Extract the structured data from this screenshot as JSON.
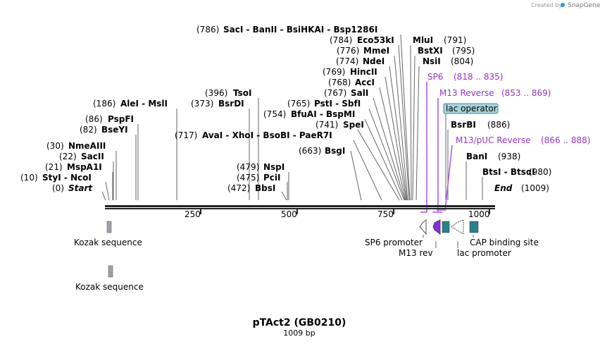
{
  "brand": {
    "created_by": "Created by",
    "name": "SnapGene",
    "accent": "#1fa0d8"
  },
  "title": "pTAct2 (GB0210)",
  "subtitle": "1009 bp",
  "ticks": [
    "250",
    "500",
    "750",
    "1000"
  ],
  "sites": [
    {
      "pos": "(786)",
      "name": "SacI  - BanII  - BsiHKAI  - Bsp1286I"
    },
    {
      "pos": "(784)",
      "name": "Eco53kI"
    },
    {
      "pos": "(776)",
      "name": "MmeI"
    },
    {
      "pos": "(774)",
      "name": "NdeI"
    },
    {
      "pos": "(769)",
      "name": "HincII"
    },
    {
      "pos": "(768)",
      "name": "AccI"
    },
    {
      "pos": "(767)",
      "name": "SalI"
    },
    {
      "pos": "(765)",
      "name": "PstI  - SbfI"
    },
    {
      "pos": "(754)",
      "name": "BfuAI  - BspMI"
    },
    {
      "pos": "(741)",
      "name": "SpeI"
    },
    {
      "pos": "(717)",
      "name": "AvaI  - XhoI  - BsoBI  - PaeR7I"
    },
    {
      "pos": "(663)",
      "name": "BsgI"
    },
    {
      "pos": "(396)",
      "name": "TsoI"
    },
    {
      "pos": "(373)",
      "name": "BsrDI"
    },
    {
      "pos": "(186)",
      "name": "AleI  - MslI"
    },
    {
      "pos": "(86)",
      "name": "PspFI"
    },
    {
      "pos": "(82)",
      "name": "BseYI"
    },
    {
      "pos": "(30)",
      "name": "NmeAIII"
    },
    {
      "pos": "(22)",
      "name": "SacII"
    },
    {
      "pos": "(21)",
      "name": "MspA1I"
    },
    {
      "pos": "(10)",
      "name": "StyI  - NcoI"
    },
    {
      "pos": "(0)",
      "name": "Start"
    },
    {
      "pos": "(479)",
      "name": "NspI"
    },
    {
      "pos": "(475)",
      "name": "PciI"
    },
    {
      "pos": "(472)",
      "name": "BbsI"
    },
    {
      "pos": "(791)",
      "name": "MluI"
    },
    {
      "pos": "(795)",
      "name": "BstXI"
    },
    {
      "pos": "(804)",
      "name": "NsiI"
    },
    {
      "pos": "(886)",
      "name": "BsrBI"
    },
    {
      "pos": "(938)",
      "name": "BanI"
    },
    {
      "pos": "(980)",
      "name": "BtsI  - BtsαI"
    },
    {
      "pos": "(1009)",
      "name": "End"
    }
  ],
  "primers": [
    {
      "name": "SP6",
      "range": "(818 .. 835)"
    },
    {
      "name": "M13 Reverse",
      "range": "(853 .. 869)"
    },
    {
      "name": "M13/pUC Reverse",
      "range": "(866 .. 888)"
    }
  ],
  "lac_operator": "lac operator",
  "features": [
    {
      "name": "Kozak sequence"
    },
    {
      "name": "Kozak sequence"
    },
    {
      "name": "SP6 promoter"
    },
    {
      "name": "M13 rev"
    },
    {
      "name": "lac promoter"
    },
    {
      "name": "CAP binding site"
    }
  ],
  "colors": {
    "backbone": "#222222",
    "primer": "#9933cc",
    "kozak": "#a0a0a8",
    "cap": "#2a7f8f",
    "operator": "#a8d4dc",
    "m13rev": "#8a2be2"
  }
}
